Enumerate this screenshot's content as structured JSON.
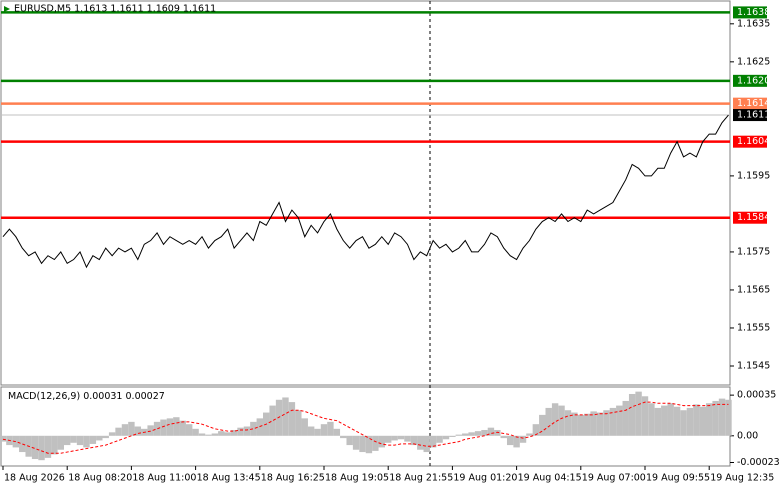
{
  "chart_data": [
    {
      "type": "line",
      "title": "EURUSD,M5 1.1613 1.1611 1.1609 1.1611",
      "categories": [
        "18 Aug 2026",
        null,
        null,
        null,
        null,
        null,
        null,
        null,
        null,
        null,
        "18 Aug 08:20",
        null,
        null,
        null,
        null,
        null,
        null,
        null,
        null,
        null,
        "18 Aug 11:00",
        null,
        null,
        null,
        null,
        null,
        null,
        null,
        null,
        null,
        "18 Aug 13:45",
        null,
        null,
        null,
        null,
        null,
        null,
        null,
        null,
        null,
        "18 Aug 16:25",
        null,
        null,
        null,
        null,
        null,
        null,
        null,
        null,
        null,
        "18 Aug 19:05",
        null,
        null,
        null,
        null,
        null,
        null,
        null,
        null,
        null,
        "18 Aug 21:55",
        null,
        null,
        null,
        null,
        null,
        null,
        null,
        null,
        null,
        "19 Aug 01:20",
        null,
        null,
        null,
        null,
        null,
        null,
        null,
        null,
        null,
        "19 Aug 04:15",
        null,
        null,
        null,
        null,
        null,
        null,
        null,
        null,
        null,
        "19 Aug 07:00",
        null,
        null,
        null,
        null,
        null,
        null,
        null,
        null,
        null,
        "19 Aug 09:55",
        null,
        null,
        null,
        null,
        null,
        null,
        null,
        null,
        null,
        "19 Aug 12:35",
        null,
        null,
        null
      ],
      "values": [
        1.1579,
        1.1581,
        1.1579,
        1.1576,
        1.1574,
        1.1575,
        1.1572,
        1.1574,
        1.1573,
        1.1575,
        1.1572,
        1.1573,
        1.1575,
        1.1571,
        1.1574,
        1.1573,
        1.1576,
        1.1574,
        1.1576,
        1.1575,
        1.1576,
        1.1573,
        1.1577,
        1.1578,
        1.158,
        1.1577,
        1.1579,
        1.1578,
        1.1577,
        1.1578,
        1.1577,
        1.1579,
        1.1576,
        1.1578,
        1.1579,
        1.1581,
        1.1576,
        1.1578,
        1.158,
        1.1578,
        1.1583,
        1.1582,
        1.1585,
        1.1588,
        1.1583,
        1.1586,
        1.1584,
        1.1579,
        1.1582,
        1.158,
        1.1583,
        1.1585,
        1.1581,
        1.1578,
        1.1576,
        1.1578,
        1.1579,
        1.1576,
        1.1577,
        1.1579,
        1.1577,
        1.158,
        1.1579,
        1.1577,
        1.1573,
        1.1575,
        1.1574,
        1.1578,
        1.1576,
        1.1577,
        1.1575,
        1.1576,
        1.1578,
        1.1575,
        1.1575,
        1.1577,
        1.158,
        1.1579,
        1.1576,
        1.1574,
        1.1573,
        1.1576,
        1.1578,
        1.1581,
        1.1583,
        1.1584,
        1.1583,
        1.1585,
        1.1583,
        1.1584,
        1.1583,
        1.1586,
        1.1585,
        1.1586,
        1.1587,
        1.1588,
        1.1591,
        1.1594,
        1.1598,
        1.1597,
        1.1595,
        1.1595,
        1.1597,
        1.1597,
        1.1601,
        1.1604,
        1.16,
        1.1601,
        1.16,
        1.1604,
        1.1606,
        1.1606,
        1.1609,
        1.1611
      ],
      "color": "#000000",
      "ylim": [
        1.154,
        1.1641
      ],
      "yticks": [
        1.1545,
        1.1555,
        1.1565,
        1.1575,
        1.1595,
        1.1625,
        1.1635
      ],
      "levels": [
        {
          "value": 1.1638,
          "color": "#008000"
        },
        {
          "value": 1.162,
          "label": "1.1620",
          "color": "#008000"
        },
        {
          "value": 1.1614,
          "color": "#ff7f50"
        },
        {
          "value": 1.1604,
          "color": "#ff0000"
        },
        {
          "value": 1.1584,
          "color": "#ff0000"
        }
      ],
      "current_price": 1.1611
    },
    {
      "type": "macd",
      "title": "MACD(12,26,9)",
      "current": [
        0.00031,
        0.00027
      ],
      "series": [
        {
          "color": "#c0c0c0",
          "values": [
            -5e-05,
            -8e-05,
            -0.0001,
            -0.00014,
            -0.00018,
            -0.0002,
            -0.00021,
            -0.00019,
            -0.00016,
            -0.00012,
            -8e-05,
            -6e-05,
            -8e-05,
            -0.0001,
            -7e-05,
            -4e-05,
            -2e-05,
            3e-05,
            7e-05,
            0.0001,
            0.00012,
            8e-05,
            6e-05,
            9e-05,
            0.00012,
            0.00014,
            0.00015,
            0.00016,
            0.00013,
            0.0001,
            6e-05,
            2e-05,
            1e-05,
            2e-05,
            4e-05,
            3e-05,
            5e-05,
            7e-05,
            8e-05,
            0.00012,
            0.00015,
            0.0002,
            0.00026,
            0.00031,
            0.00033,
            0.00029,
            0.00022,
            0.00015,
            8e-05,
            6e-05,
            0.0001,
            0.00012,
            6e-05,
            -2e-05,
            -8e-05,
            -0.00012,
            -0.00014,
            -0.00015,
            -0.00013,
            -0.0001,
            -6e-05,
            -4e-05,
            -3e-05,
            -5e-05,
            -8e-05,
            -0.00012,
            -0.00014,
            -0.0001,
            -6e-05,
            -3e-05,
            -1e-05,
            1e-05,
            2e-05,
            3e-05,
            4e-05,
            5e-05,
            7e-05,
            5e-05,
            -2e-05,
            -8e-05,
            -0.0001,
            -6e-05,
            2e-05,
            0.0001,
            0.00018,
            0.00024,
            0.00028,
            0.00026,
            0.00022,
            0.0002,
            0.00018,
            0.00019,
            0.00021,
            0.0002,
            0.00022,
            0.00024,
            0.00026,
            0.0003,
            0.00036,
            0.00038,
            0.00034,
            0.00028,
            0.00024,
            0.00026,
            0.00028,
            0.00025,
            0.00022,
            0.00024,
            0.00027,
            0.00025,
            0.00028,
            0.0003,
            0.00032,
            0.00031
          ]
        },
        {
          "color": "#ff0000",
          "values": [
            -3e-05,
            -4e-05,
            -5e-05,
            -7e-05,
            -9e-05,
            -0.00011,
            -0.00013,
            -0.00015,
            -0.00015,
            -0.00015,
            -0.00014,
            -0.00013,
            -0.00012,
            -0.00011,
            -0.0001,
            -9e-05,
            -8e-05,
            -6e-05,
            -4e-05,
            -2e-05,
            0,
            2e-05,
            3e-05,
            4e-05,
            6e-05,
            8e-05,
            0.0001,
            0.00011,
            0.00012,
            0.00012,
            0.00011,
            0.0001,
            8e-05,
            6e-05,
            5e-05,
            4e-05,
            4e-05,
            5e-05,
            5e-05,
            6e-05,
            8e-05,
            0.0001,
            0.00013,
            0.00016,
            0.00019,
            0.00022,
            0.00022,
            0.00021,
            0.00019,
            0.00017,
            0.00015,
            0.00014,
            0.00013,
            0.0001,
            7e-05,
            4e-05,
            1e-05,
            -2e-05,
            -5e-05,
            -7e-05,
            -8e-05,
            -8e-05,
            -7e-05,
            -7e-05,
            -7e-05,
            -8e-05,
            -9e-05,
            -9e-05,
            -8e-05,
            -7e-05,
            -6e-05,
            -5e-05,
            -3e-05,
            -2e-05,
            -1e-05,
            0,
            2e-05,
            3e-05,
            2e-05,
            1e-05,
            -1e-05,
            -2e-05,
            -1e-05,
            1e-05,
            4e-05,
            8e-05,
            0.00012,
            0.00015,
            0.00017,
            0.00018,
            0.00018,
            0.00018,
            0.00018,
            0.00019,
            0.00019,
            0.0002,
            0.00021,
            0.00022,
            0.00025,
            0.00027,
            0.00029,
            0.00029,
            0.00028,
            0.00028,
            0.00028,
            0.00027,
            0.00026,
            0.00026,
            0.00026,
            0.00026,
            0.00026,
            0.00027,
            0.00027,
            0.00027
          ]
        }
      ],
      "ylim": [
        -0.00026,
        0.00042
      ],
      "yticks": [
        0.00035,
        {
          "value": 0,
          "label": "0.00"
        },
        -0.00023
      ]
    }
  ]
}
